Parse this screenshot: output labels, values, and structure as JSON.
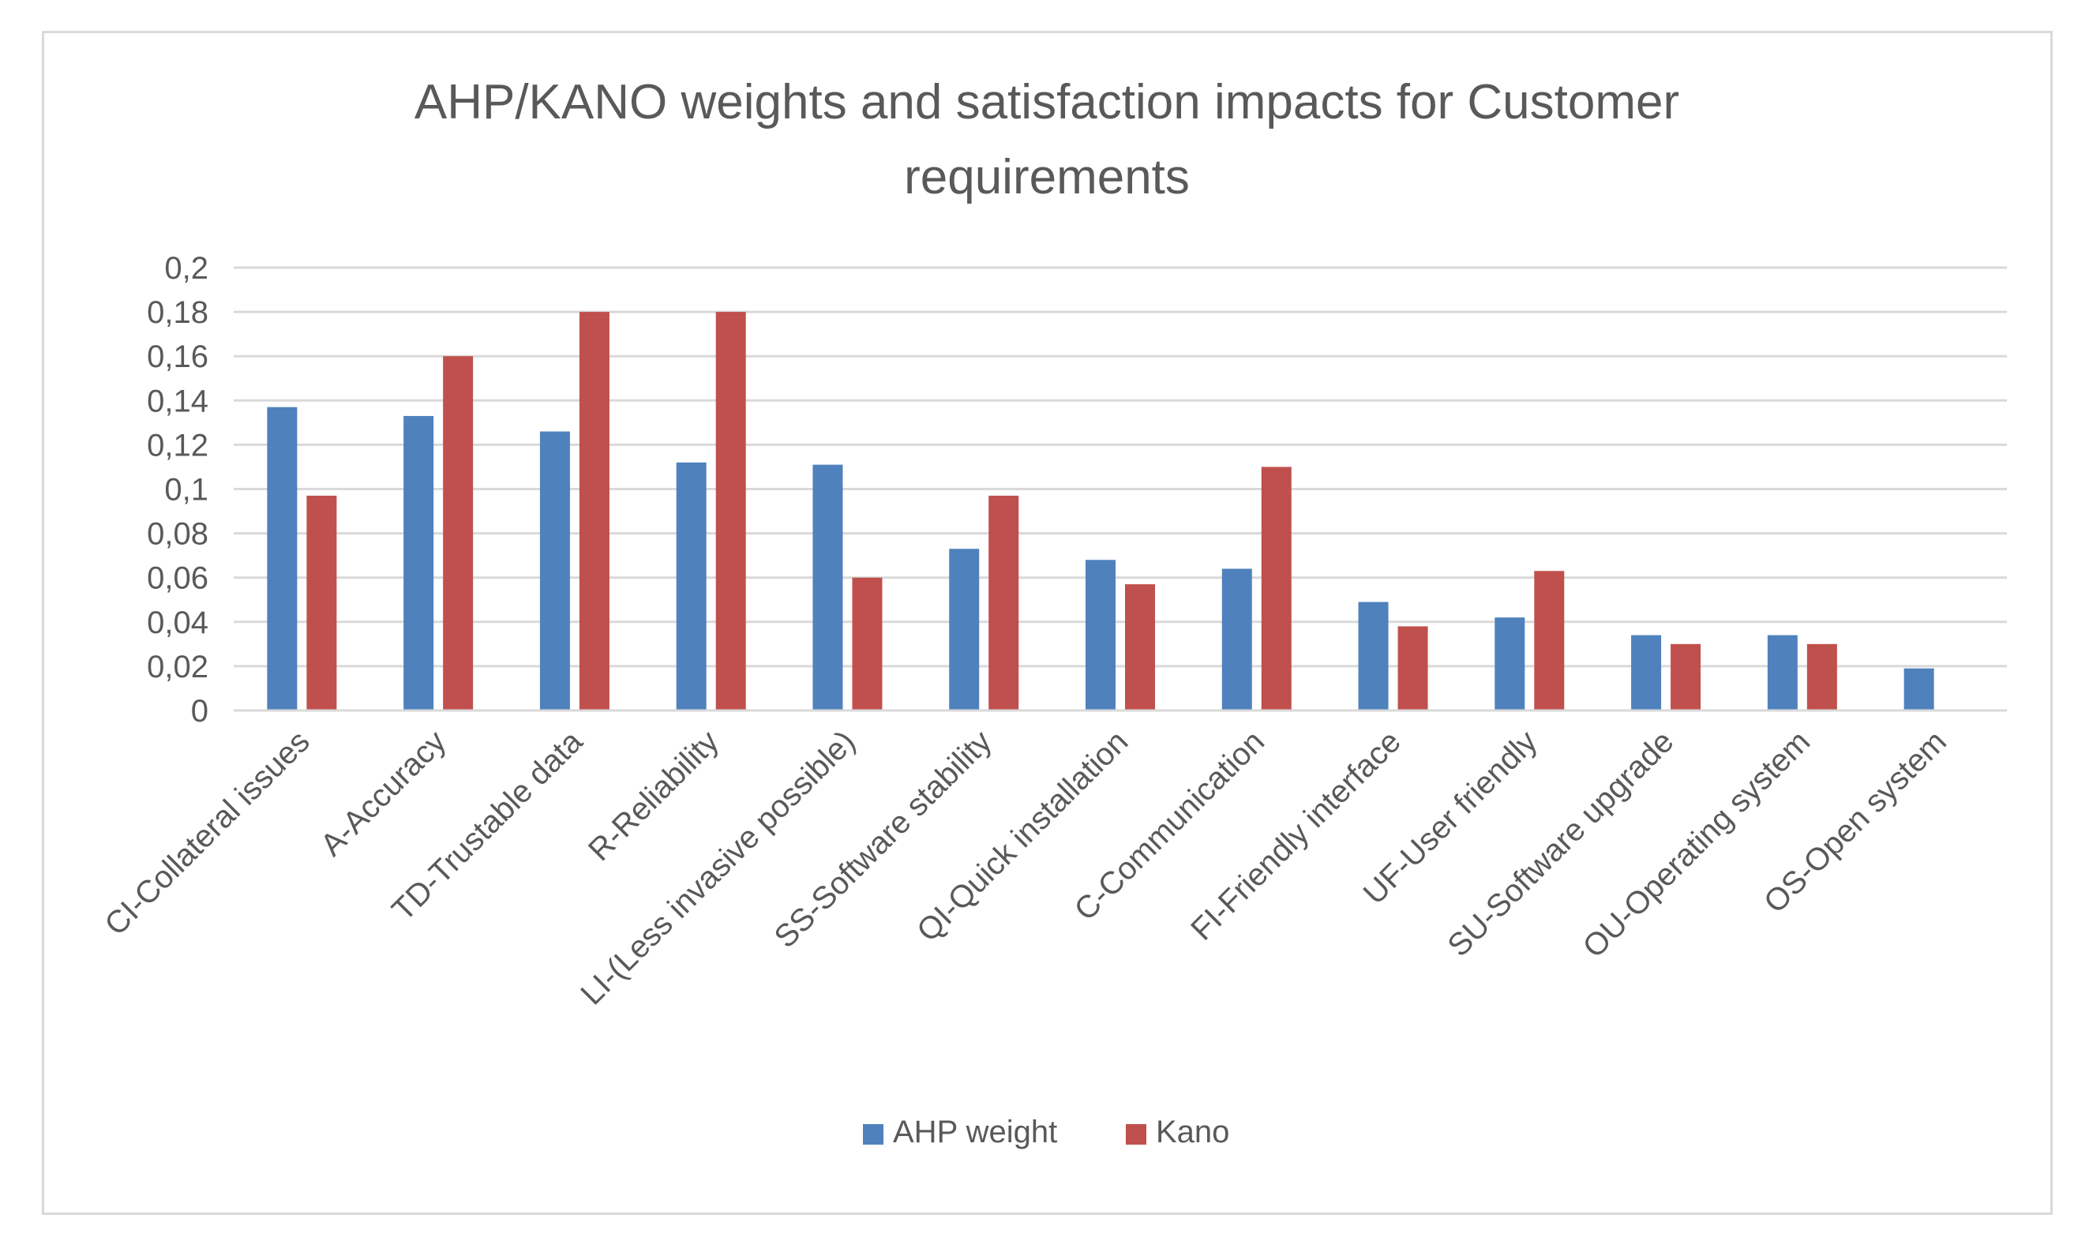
{
  "chart_data": {
    "type": "bar",
    "title": "AHP/KANO weights and satisfaction impacts for Customer requirements",
    "title_lines": [
      "AHP/KANO weights and satisfaction impacts for Customer",
      "requirements"
    ],
    "xlabel": "",
    "ylabel": "",
    "ylim": [
      0,
      0.2
    ],
    "yticks": [
      0,
      0.02,
      0.04,
      0.06,
      0.08,
      0.1,
      0.12,
      0.14,
      0.16,
      0.18,
      0.2
    ],
    "ytick_labels": [
      "0",
      "0,02",
      "0,04",
      "0,06",
      "0,08",
      "0,1",
      "0,12",
      "0,14",
      "0,16",
      "0,18",
      "0,2"
    ],
    "grid": true,
    "legend_position": "bottom",
    "categories": [
      "CI-Collateral issues",
      "A-Accuracy",
      "TD-Trustable data",
      "R-Reliability",
      "LI-(Less invasive possible)",
      "SS-Software stability",
      "QI-Quick installation",
      "C-Communication",
      "FI-Friendly interface",
      "UF-User friendly",
      "SU-Software upgrade",
      "OU-Operating system",
      "OS-Open system"
    ],
    "series": [
      {
        "name": "AHP weight",
        "color": "#4f81bd",
        "values": [
          0.137,
          0.133,
          0.126,
          0.112,
          0.111,
          0.073,
          0.068,
          0.064,
          0.049,
          0.042,
          0.034,
          0.034,
          0.019
        ]
      },
      {
        "name": "Kano",
        "color": "#c0504d",
        "values": [
          0.097,
          0.16,
          0.18,
          0.18,
          0.06,
          0.097,
          0.057,
          0.11,
          0.038,
          0.063,
          0.03,
          0.03,
          0
        ]
      }
    ]
  }
}
